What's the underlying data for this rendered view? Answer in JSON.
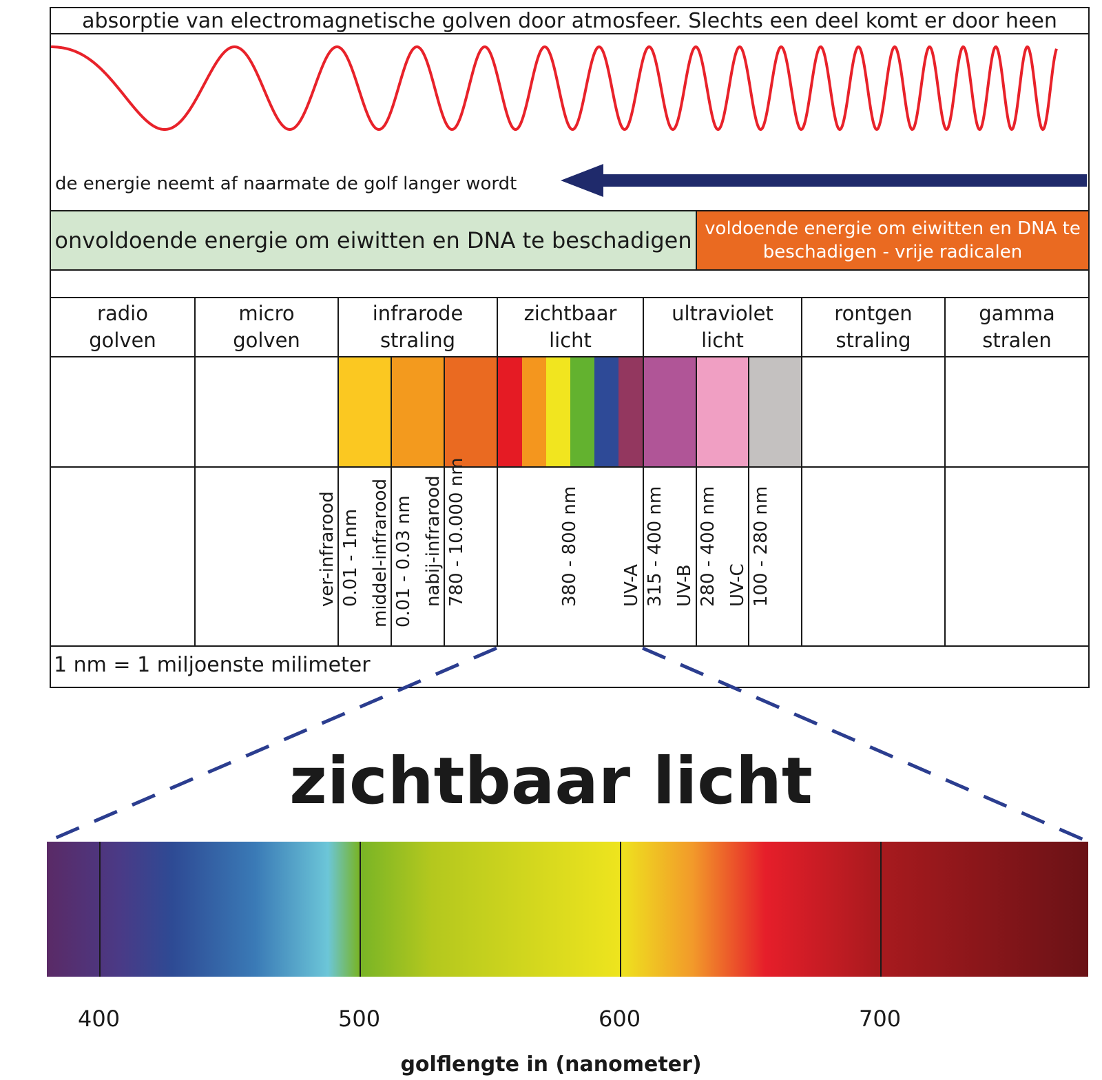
{
  "header": {
    "title": "absorptie van electromagnetische golven door atmosfeer. Slechts een deel komt er door heen"
  },
  "wave": {
    "energy_note": "de energie neemt af naarmate de golf langer wordt",
    "wave_color": "#e8222a",
    "arrow_color": "#1f2a6b"
  },
  "bands": {
    "insufficient": "onvoldoende energie om eiwitten en DNA te beschadigen",
    "sufficient": "voldoende energie om eiwitten en DNA te beschadigen - vrije radicalen",
    "insufficient_color": "#d3e7cf",
    "sufficient_color": "#ea6a21"
  },
  "categories": [
    {
      "line1": "radio",
      "line2": "golven"
    },
    {
      "line1": "micro",
      "line2": "golven"
    },
    {
      "line1": "infrarode",
      "line2": "straling"
    },
    {
      "line1": "zichtbaar",
      "line2": "licht"
    },
    {
      "line1": "ultraviolet",
      "line2": "licht"
    },
    {
      "line1": "rontgen",
      "line2": "straling"
    },
    {
      "line1": "gamma",
      "line2": "stralen"
    }
  ],
  "subranges": {
    "ir_far": {
      "name": "ver-infrarood",
      "range": "0.01 - 1nm"
    },
    "ir_mid": {
      "name": "middel-infrarood",
      "range": "0.01 - 0.03 nm"
    },
    "ir_near": {
      "name": "nabij-infrarood",
      "range": "780 - 10.000 nm"
    },
    "visible": {
      "range": "380 - 800 nm"
    },
    "uva": {
      "name": "UV-A",
      "range": "315 - 400 nm"
    },
    "uvb": {
      "name": "UV-B",
      "range": "280 - 400 nm"
    },
    "uvc": {
      "name": "UV-C",
      "range": "100 - 280 nm"
    }
  },
  "swatch_colors": {
    "ir_far": "#fbc821",
    "ir_mid": "#f39a1e",
    "ir_near": "#ea6a21",
    "visible": [
      "#e51b24",
      "#f4961e",
      "#f1e51f",
      "#63b22f",
      "#2e4a97",
      "#93375f"
    ],
    "uva": "#b05597",
    "uvb": "#f09fc3",
    "uvc": "#c4c1c0"
  },
  "footnote": "1 nm = 1 miljoenste milimeter",
  "zoom": {
    "title": "zichtbaar licht",
    "dash_color": "#2b3d8f",
    "tick_values": [
      400,
      500,
      600,
      700
    ],
    "tick_labels": [
      "400",
      "500",
      "600",
      "700"
    ],
    "axis_range_nm": [
      380,
      780
    ],
    "axis_label": "golflengte in (nanometer)"
  }
}
